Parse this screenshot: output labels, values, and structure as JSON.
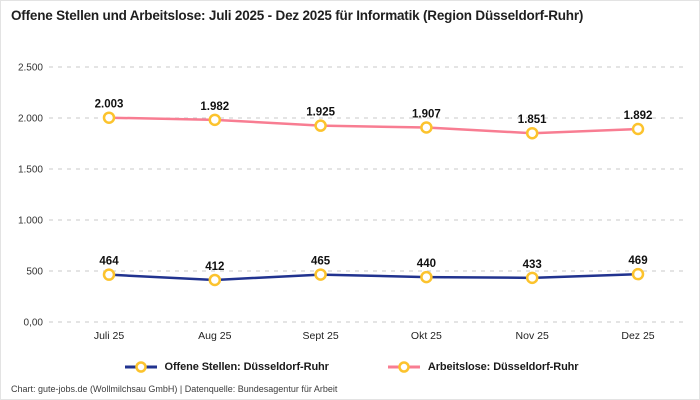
{
  "title": "Offene Stellen und Arbeitslose: Juli 2025 - Dez 2025 für Informatik (Region Düsseldorf-Ruhr)",
  "footer": "Chart: gute-jobs.de (Wollmilchsau GmbH) | Datenquelle: Bundesagentur für Arbeit",
  "colors": {
    "offene": "#21338f",
    "arbeitslose": "#f87d92",
    "marker": "#fcc32d",
    "grid": "#c8c8c8",
    "tick_text": "#333333",
    "label_text": "#111111"
  },
  "chart_data": {
    "type": "line",
    "title": "Offene Stellen und Arbeitslose: Juli 2025 - Dez 2025 für Informatik (Region Düsseldorf-Ruhr)",
    "categories": [
      "Juli 25",
      "Aug 25",
      "Sept 25",
      "Okt 25",
      "Nov 25",
      "Dez 25"
    ],
    "series": [
      {
        "name": "Offene Stellen: Düsseldorf-Ruhr",
        "values": [
          464,
          412,
          465,
          440,
          433,
          469
        ],
        "labels": [
          "464",
          "412",
          "465",
          "440",
          "433",
          "469"
        ],
        "color_key": "offene"
      },
      {
        "name": "Arbeitslose: Düsseldorf-Ruhr",
        "values": [
          2003,
          1982,
          1925,
          1907,
          1851,
          1892
        ],
        "labels": [
          "2.003",
          "1.982",
          "1.925",
          "1.907",
          "1.851",
          "1.892"
        ],
        "color_key": "arbeitslose"
      }
    ],
    "y_ticks": [
      {
        "value": 0,
        "label": "0,00"
      },
      {
        "value": 500,
        "label": "500"
      },
      {
        "value": 1000,
        "label": "1.000"
      },
      {
        "value": 1500,
        "label": "1.500"
      },
      {
        "value": 2000,
        "label": "2.000"
      },
      {
        "value": 2500,
        "label": "2.500"
      }
    ],
    "ylim": [
      0,
      2500
    ],
    "xlabel": "",
    "ylabel": "",
    "grid": "dashed-horizontal",
    "legend_position": "bottom",
    "marker_style": "open-circle-yellow"
  }
}
